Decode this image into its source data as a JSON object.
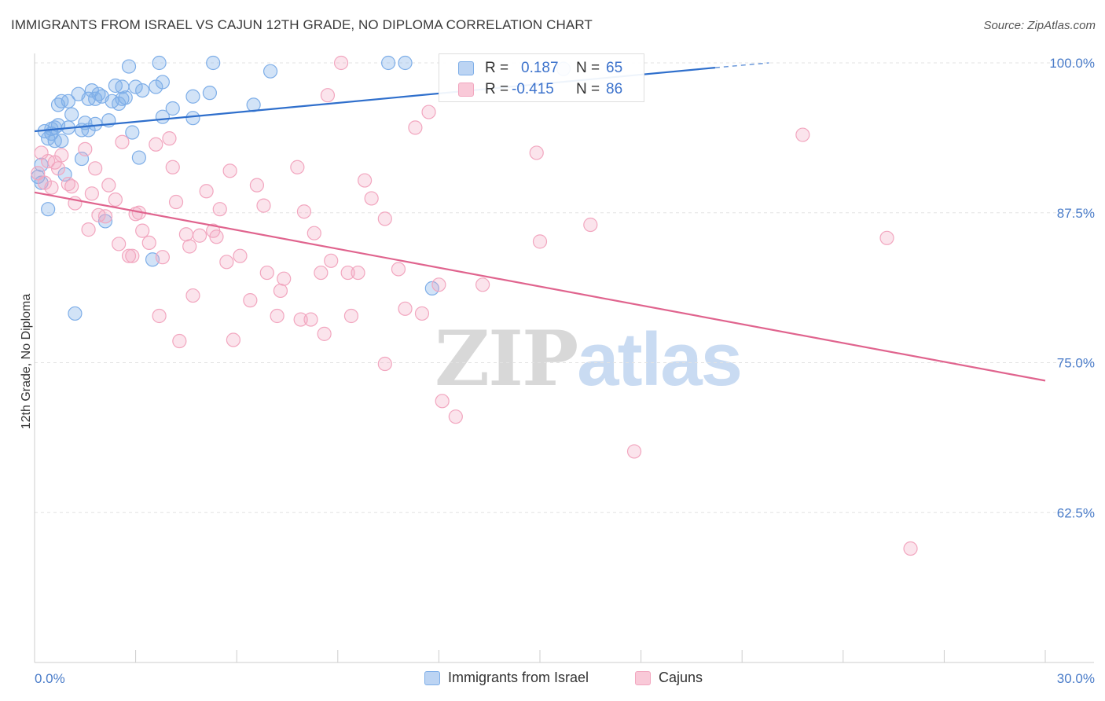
{
  "header": {
    "title": "IMMIGRANTS FROM ISRAEL VS CAJUN 12TH GRADE, NO DIPLOMA CORRELATION CHART",
    "source": "Source: ZipAtlas.com"
  },
  "watermark": {
    "zip": "ZIP",
    "atlas": "atlas"
  },
  "colors": {
    "blue": "#7eaee8",
    "blue_line": "#2f6fcc",
    "pink": "#f2a6bf",
    "pink_line": "#e0648e",
    "tick_text": "#4a7cc9"
  },
  "legend": {
    "rows": [
      {
        "r_label": "R =",
        "r_value": "0.187",
        "n_label": "N =",
        "n_value": "65"
      },
      {
        "r_label": "R =",
        "r_value": "-0.415",
        "n_label": "N =",
        "n_value": "86"
      }
    ]
  },
  "bottom_legend": {
    "series1": "Immigrants from Israel",
    "series2": "Cajuns"
  },
  "chart_data": {
    "type": "scatter",
    "title": "IMMIGRANTS FROM ISRAEL VS CAJUN 12TH GRADE, NO DIPLOMA CORRELATION CHART",
    "xlabel": "",
    "ylabel": "12th Grade, No Diploma",
    "xlim": [
      0,
      30
    ],
    "ylim": [
      50,
      100
    ],
    "x_tick_labels": [
      "0.0%",
      "30.0%"
    ],
    "y_ticks": [
      62.5,
      75,
      87.5,
      100
    ],
    "y_tick_labels": [
      "62.5%",
      "75.0%",
      "87.5%",
      "100.0%"
    ],
    "grid": "horizontal dashed",
    "legend_placement": "top-center",
    "series": [
      {
        "name": "Immigrants from Israel",
        "color": "#7eaee8",
        "r": 0.187,
        "n": 65,
        "trend": {
          "x": [
            0,
            20.2
          ],
          "y": [
            94.3,
            99.6
          ],
          "dashed_to": [
            21.8,
            100.0
          ]
        },
        "points": [
          [
            0.1,
            90.5
          ],
          [
            0.2,
            91.5
          ],
          [
            0.2,
            90.0
          ],
          [
            0.3,
            94.3
          ],
          [
            0.4,
            93.7
          ],
          [
            0.4,
            87.8
          ],
          [
            0.5,
            94.5
          ],
          [
            0.5,
            94.1
          ],
          [
            0.6,
            94.6
          ],
          [
            0.6,
            93.5
          ],
          [
            0.7,
            96.5
          ],
          [
            0.7,
            94.8
          ],
          [
            0.8,
            96.8
          ],
          [
            0.8,
            93.5
          ],
          [
            0.9,
            90.7
          ],
          [
            1.0,
            94.6
          ],
          [
            1.0,
            96.8
          ],
          [
            1.1,
            95.7
          ],
          [
            1.2,
            79.1
          ],
          [
            1.3,
            97.4
          ],
          [
            1.4,
            94.4
          ],
          [
            1.4,
            92.0
          ],
          [
            1.5,
            95.0
          ],
          [
            1.6,
            97.0
          ],
          [
            1.6,
            94.4
          ],
          [
            1.7,
            97.7
          ],
          [
            1.8,
            97.0
          ],
          [
            1.8,
            94.9
          ],
          [
            1.9,
            97.4
          ],
          [
            2.0,
            97.2
          ],
          [
            2.1,
            86.8
          ],
          [
            2.2,
            95.2
          ],
          [
            2.3,
            96.8
          ],
          [
            2.4,
            98.1
          ],
          [
            2.5,
            96.6
          ],
          [
            2.6,
            98.0
          ],
          [
            2.6,
            97.0
          ],
          [
            2.7,
            97.1
          ],
          [
            2.8,
            99.7
          ],
          [
            2.9,
            94.2
          ],
          [
            3.0,
            98.0
          ],
          [
            3.1,
            92.1
          ],
          [
            3.2,
            97.7
          ],
          [
            3.5,
            83.6
          ],
          [
            3.6,
            98.0
          ],
          [
            3.7,
            100.0
          ],
          [
            3.8,
            95.5
          ],
          [
            3.8,
            98.4
          ],
          [
            4.1,
            96.2
          ],
          [
            4.7,
            95.4
          ],
          [
            4.7,
            97.2
          ],
          [
            5.2,
            97.5
          ],
          [
            5.3,
            100.0
          ],
          [
            6.5,
            96.5
          ],
          [
            7.0,
            99.3
          ],
          [
            10.5,
            100.0
          ],
          [
            11.0,
            100.0
          ],
          [
            11.8,
            81.2
          ],
          [
            15.7,
            99.5
          ]
        ]
      },
      {
        "name": "Cajuns",
        "color": "#f2a6bf",
        "r": -0.415,
        "n": 86,
        "trend": {
          "x": [
            0,
            30
          ],
          "y": [
            89.2,
            73.5
          ]
        },
        "points": [
          [
            0.1,
            90.8
          ],
          [
            0.2,
            92.5
          ],
          [
            0.3,
            90.0
          ],
          [
            0.4,
            91.8
          ],
          [
            0.5,
            89.6
          ],
          [
            0.6,
            91.7
          ],
          [
            0.7,
            91.2
          ],
          [
            0.8,
            92.3
          ],
          [
            1.0,
            89.9
          ],
          [
            1.1,
            89.7
          ],
          [
            1.2,
            88.3
          ],
          [
            1.5,
            92.8
          ],
          [
            1.6,
            86.1
          ],
          [
            1.7,
            89.1
          ],
          [
            1.8,
            91.2
          ],
          [
            1.9,
            87.3
          ],
          [
            2.1,
            87.2
          ],
          [
            2.2,
            89.8
          ],
          [
            2.4,
            88.6
          ],
          [
            2.5,
            84.9
          ],
          [
            2.6,
            93.4
          ],
          [
            2.8,
            83.9
          ],
          [
            2.9,
            83.9
          ],
          [
            3.0,
            87.4
          ],
          [
            3.1,
            87.5
          ],
          [
            3.2,
            86.0
          ],
          [
            3.4,
            85.0
          ],
          [
            3.6,
            93.2
          ],
          [
            3.7,
            78.9
          ],
          [
            3.8,
            83.8
          ],
          [
            4.0,
            93.7
          ],
          [
            4.1,
            91.3
          ],
          [
            4.2,
            88.4
          ],
          [
            4.3,
            76.8
          ],
          [
            4.5,
            85.7
          ],
          [
            4.6,
            84.7
          ],
          [
            4.7,
            80.6
          ],
          [
            4.9,
            85.6
          ],
          [
            5.1,
            89.3
          ],
          [
            5.3,
            86.0
          ],
          [
            5.4,
            85.5
          ],
          [
            5.5,
            87.8
          ],
          [
            5.7,
            83.4
          ],
          [
            5.8,
            91.0
          ],
          [
            5.9,
            76.9
          ],
          [
            6.1,
            83.9
          ],
          [
            6.4,
            80.2
          ],
          [
            6.6,
            89.8
          ],
          [
            6.8,
            88.1
          ],
          [
            6.9,
            82.5
          ],
          [
            7.2,
            78.9
          ],
          [
            7.3,
            81.0
          ],
          [
            7.4,
            82.0
          ],
          [
            7.8,
            91.3
          ],
          [
            7.9,
            78.6
          ],
          [
            8.0,
            87.6
          ],
          [
            8.2,
            78.6
          ],
          [
            8.3,
            85.8
          ],
          [
            8.5,
            82.5
          ],
          [
            8.6,
            77.4
          ],
          [
            8.7,
            97.3
          ],
          [
            8.8,
            83.5
          ],
          [
            9.1,
            100.0
          ],
          [
            9.3,
            82.5
          ],
          [
            9.4,
            78.9
          ],
          [
            9.6,
            82.5
          ],
          [
            9.8,
            90.2
          ],
          [
            10.0,
            88.7
          ],
          [
            10.4,
            87.0
          ],
          [
            10.4,
            74.9
          ],
          [
            10.8,
            82.8
          ],
          [
            11.0,
            79.5
          ],
          [
            11.3,
            94.6
          ],
          [
            11.5,
            79.1
          ],
          [
            11.7,
            95.9
          ],
          [
            12.0,
            81.5
          ],
          [
            12.1,
            71.8
          ],
          [
            12.5,
            70.5
          ],
          [
            13.3,
            81.5
          ],
          [
            14.9,
            92.5
          ],
          [
            15.0,
            85.1
          ],
          [
            16.5,
            86.5
          ],
          [
            17.8,
            67.6
          ],
          [
            22.8,
            94.0
          ],
          [
            25.3,
            85.4
          ],
          [
            26.0,
            59.5
          ]
        ]
      }
    ]
  }
}
